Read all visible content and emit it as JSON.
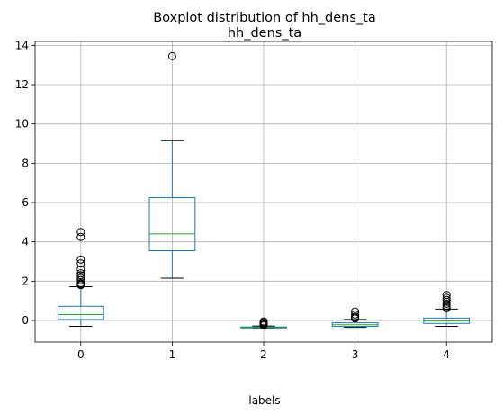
{
  "chart_data": {
    "type": "box",
    "suptitle": "Boxplot distribution of hh_dens_ta",
    "title": "hh_dens_ta",
    "xlabel": "labels",
    "ylabel": "",
    "categories": [
      "0",
      "1",
      "2",
      "3",
      "4"
    ],
    "ylim": [
      -1.1,
      14.2
    ],
    "yticks": [
      0,
      2,
      4,
      6,
      8,
      10,
      12,
      14
    ],
    "grid": true,
    "colors": {
      "box": "#1f77b4",
      "median": "#2ca02c",
      "whisker": "#000000"
    },
    "boxes": [
      {
        "label": "0",
        "whisker_low": -0.3,
        "q1": 0.05,
        "median": 0.3,
        "q3": 0.72,
        "whisker_high": 1.72,
        "outliers": [
          1.8,
          1.85,
          1.9,
          2.05,
          2.2,
          2.3,
          2.4,
          2.6,
          2.9,
          3.1,
          4.25,
          4.5
        ]
      },
      {
        "label": "1",
        "whisker_low": 2.15,
        "q1": 3.55,
        "median": 4.4,
        "q3": 6.25,
        "whisker_high": 9.15,
        "outliers": [
          13.45
        ]
      },
      {
        "label": "2",
        "whisker_low": -0.42,
        "q1": -0.38,
        "median": -0.36,
        "q3": -0.33,
        "whisker_high": -0.28,
        "outliers": [
          -0.25,
          -0.2,
          -0.15,
          -0.1,
          -0.05
        ]
      },
      {
        "label": "3",
        "whisker_low": -0.35,
        "q1": -0.3,
        "median": -0.22,
        "q3": -0.12,
        "whisker_high": 0.05,
        "outliers": [
          0.1,
          0.15,
          0.2,
          0.3,
          0.45
        ]
      },
      {
        "label": "4",
        "whisker_low": -0.3,
        "q1": -0.15,
        "median": -0.03,
        "q3": 0.12,
        "whisker_high": 0.58,
        "outliers": [
          0.62,
          0.68,
          0.75,
          0.85,
          0.95,
          1.05,
          1.15,
          1.3
        ]
      }
    ]
  }
}
